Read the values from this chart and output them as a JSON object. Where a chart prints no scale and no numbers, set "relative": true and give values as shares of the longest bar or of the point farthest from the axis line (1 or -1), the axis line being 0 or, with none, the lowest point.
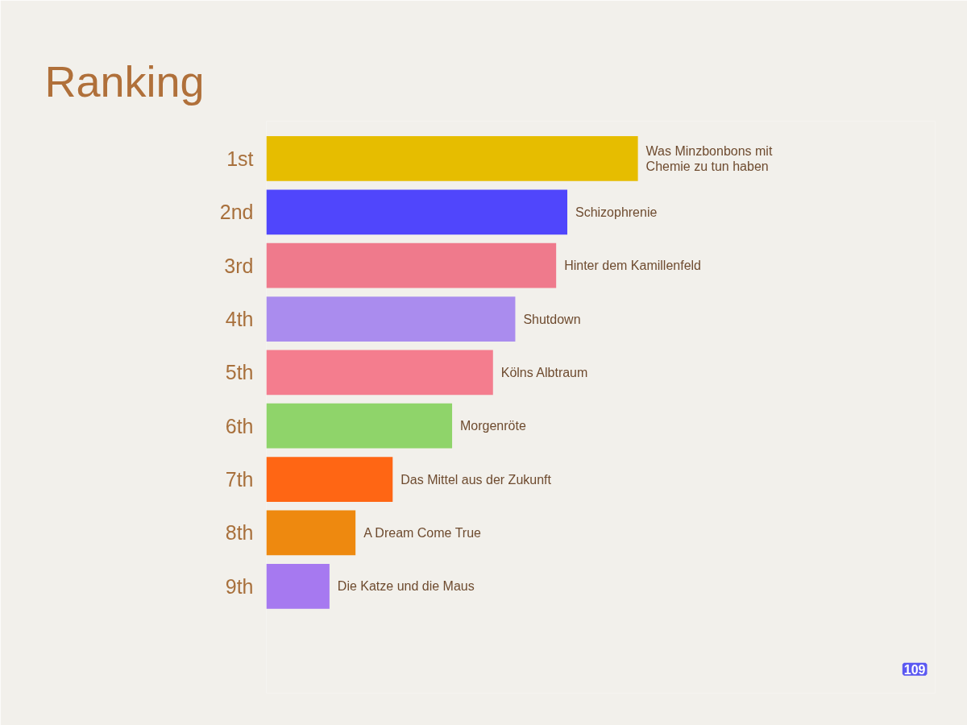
{
  "chart_data": {
    "type": "bar",
    "orientation": "horizontal",
    "relative": true,
    "title": "Ranking",
    "categories": [
      "1st",
      "2nd",
      "3rd",
      "4th",
      "5th",
      "6th",
      "7th",
      "8th",
      "9th"
    ],
    "values": [
      1,
      0.81,
      0.78,
      0.67,
      0.61,
      0.5,
      0.34,
      0.24,
      0.17
    ],
    "colors": [
      "#e6bd00",
      "#5046fc",
      "#ef7a8c",
      "#aa8cee",
      "#f47d8e",
      "#8fd46a",
      "#ff6614",
      "#ee890f",
      "#a679f0"
    ],
    "annotations": [
      {
        "text": "Was Minzbonbons mit Chemie zu tun haben",
        "x": 1,
        "y": "1st"
      },
      {
        "text": "Schizophrenie",
        "x": 0.81,
        "y": "2nd"
      },
      {
        "text": "Hinter dem Kamillenfeld",
        "x": 0.78,
        "y": "3rd"
      },
      {
        "text": "Shutdown",
        "x": 0.67,
        "y": "4th"
      },
      {
        "text": "Kölns Albtraum",
        "x": 0.61,
        "y": "5th"
      },
      {
        "text": "Morgenröte",
        "x": 0.5,
        "y": "6th"
      },
      {
        "text": "Das Mittel aus der Zukunft",
        "x": 0.34,
        "y": "7th"
      },
      {
        "text": "A Dream Come True",
        "x": 0.24,
        "y": "8th"
      },
      {
        "text": "Die Katze und die Maus",
        "x": 0.17,
        "y": "9th"
      },
      "109"
    ]
  }
}
